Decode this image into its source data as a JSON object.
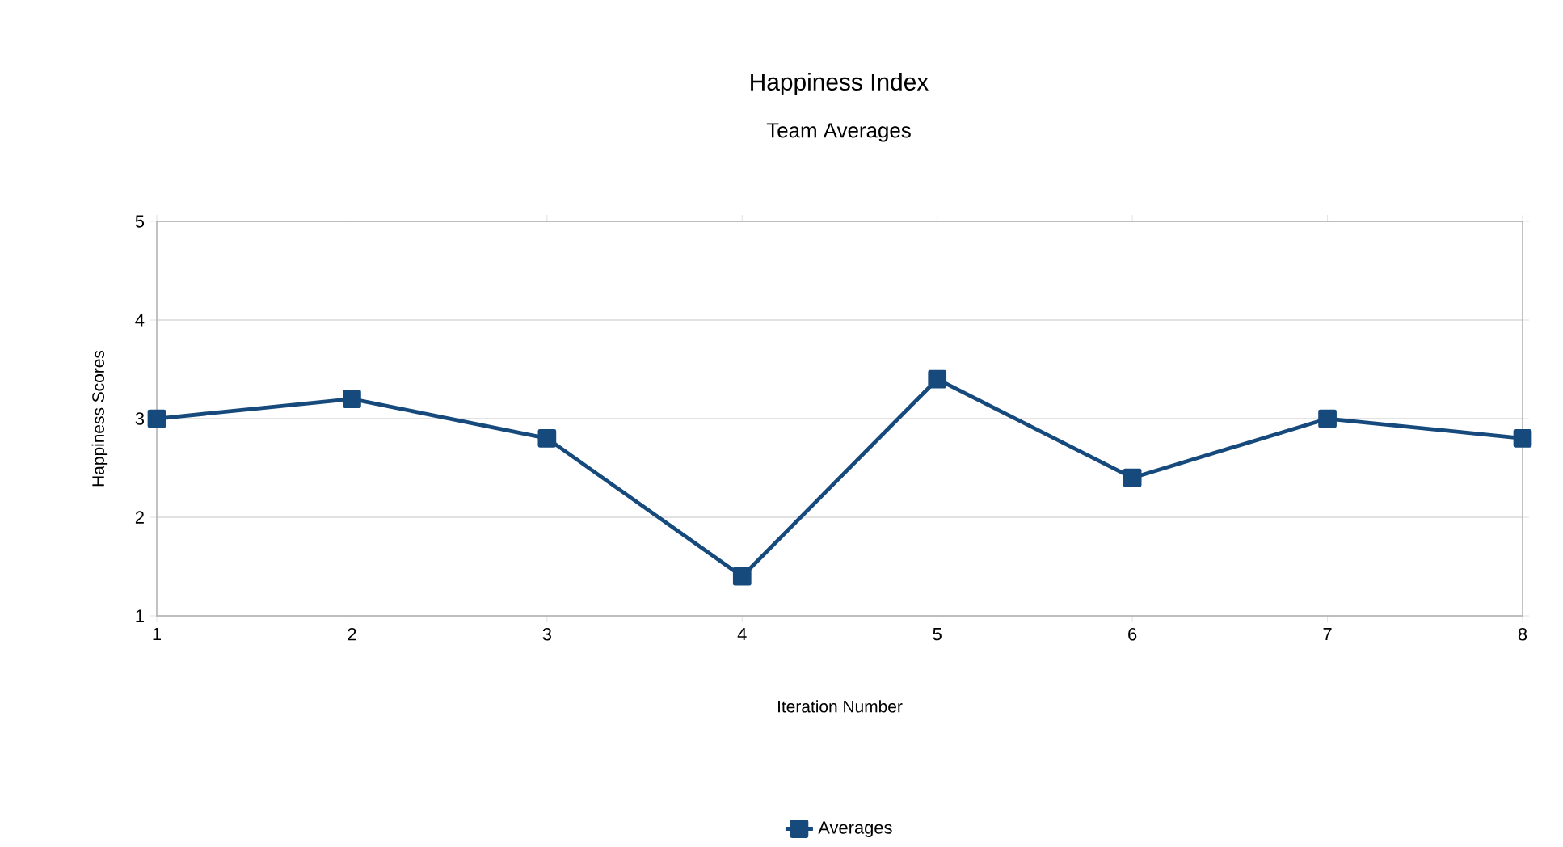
{
  "chart_data": {
    "type": "line",
    "title": "Happiness Index",
    "subtitle": "Team Averages",
    "xlabel": "Iteration Number",
    "ylabel": "Happiness Scores",
    "x": [
      1,
      2,
      3,
      4,
      5,
      6,
      7,
      8
    ],
    "series": [
      {
        "name": "Averages",
        "color": "#174a7c",
        "values": [
          3.0,
          3.2,
          2.8,
          1.4,
          3.4,
          2.4,
          3.0,
          2.8
        ]
      }
    ],
    "xlim": [
      1,
      8
    ],
    "xticks": [
      1,
      2,
      3,
      4,
      5,
      6,
      7,
      8
    ],
    "ylim": [
      1,
      5
    ],
    "yticks": [
      1,
      2,
      3,
      4,
      5
    ],
    "grid": "y",
    "legend": "bottom",
    "marker": "square",
    "line_style": "solid"
  }
}
